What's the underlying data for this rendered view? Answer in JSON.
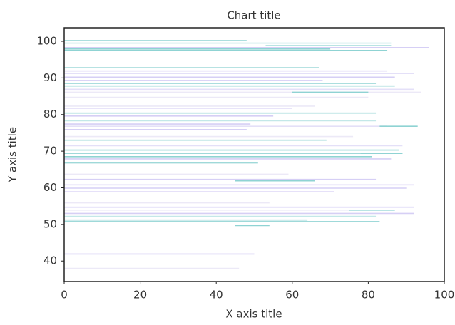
{
  "chart_data": {
    "type": "hlines",
    "title": "Chart title",
    "x_label": "X axis title",
    "y_label": "Y axis title",
    "xlim": [
      0,
      100
    ],
    "ylim": [
      34.4,
      103.7
    ],
    "xticks": [
      0,
      20,
      40,
      60,
      80,
      100
    ],
    "yticks": [
      40,
      50,
      60,
      70,
      80,
      90,
      100
    ],
    "y": [
      100.2,
      99.5,
      98.8,
      98.3,
      97.9,
      97.5,
      92.8,
      91.9,
      91.2,
      90.2,
      89.3,
      88.5,
      87.8,
      86.9,
      86.1,
      86.1,
      84.7,
      82.3,
      81.7,
      80.4,
      79.6,
      78.3,
      77.4,
      76.8,
      76.8,
      75.9,
      74,
      73,
      71.5,
      70.3,
      69.4,
      69.4,
      68.5,
      67.9,
      66.8,
      63.7,
      62.3,
      61.9,
      60.8,
      59.9,
      58.9,
      55.9,
      54.7,
      53.9,
      53.9,
      53,
      52.2,
      51.2,
      50.8,
      49.7,
      41.9,
      38
    ],
    "xmin": [
      0,
      0,
      53,
      0,
      0,
      0,
      0,
      0,
      0,
      0,
      0,
      0,
      0,
      0,
      0,
      60,
      0,
      0,
      0,
      0,
      0,
      0,
      0,
      0,
      83,
      0,
      0,
      0,
      0,
      0,
      0,
      78,
      0,
      0,
      0,
      0,
      0,
      45,
      0,
      0,
      0,
      0,
      0,
      0,
      75,
      0,
      0,
      0,
      0,
      45,
      0,
      0
    ],
    "xmax": [
      48,
      86,
      86,
      96,
      70,
      85,
      67,
      85,
      92,
      87,
      68,
      82,
      87,
      92,
      94,
      80,
      80,
      66,
      60,
      82,
      55,
      82,
      49,
      85,
      93,
      48,
      76,
      69,
      89,
      88,
      89,
      89,
      81,
      86,
      51,
      59,
      82,
      66,
      92,
      90,
      71,
      54,
      92,
      75,
      87,
      92,
      82,
      64,
      83,
      54,
      50,
      46
    ],
    "colors": [
      "#9fd9d9",
      "#c3e8e8",
      "#8fd3d3",
      "#d6cff5",
      "#8fd3d3",
      "#8fd3d3",
      "#9fd9d9",
      "#d6cff5",
      "#e4e0f8",
      "#d6cff5",
      "#d6cff5",
      "#9fd9d9",
      "#9fd9d9",
      "#e4e0f8",
      "#ece9f7",
      "#8fd3d3",
      "#ece9f7",
      "#ece9f7",
      "#e4e0f8",
      "#9fd9d9",
      "#d6cff5",
      "#c3e8e8",
      "#d6cff5",
      "#e4e0f8",
      "#8fd3d3",
      "#d6cff5",
      "#ece9f7",
      "#9fd9d9",
      "#e4e0f8",
      "#8fd3d3",
      "#9fd9d9",
      "#8fd3d3",
      "#8fd3d3",
      "#d6cff5",
      "#9fd9d9",
      "#ece9f7",
      "#d6cff5",
      "#8fd3d3",
      "#d6cff5",
      "#d6cff5",
      "#d6cff5",
      "#ece9f7",
      "#d6cff5",
      "#ece9f7",
      "#8fd3d3",
      "#d6cff5",
      "#c3e8e8",
      "#9fd9d9",
      "#9fd9d9",
      "#8fd3d3",
      "#d6cff5",
      "#ece9f7"
    ]
  }
}
